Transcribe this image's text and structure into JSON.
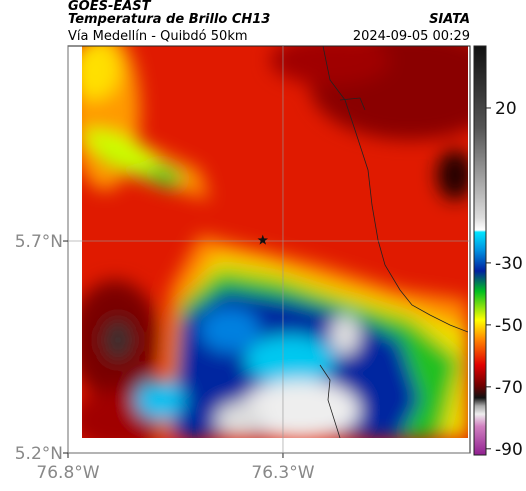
{
  "header": {
    "source": "GOES-EAST",
    "title": "Temperatura de Brillo CH13",
    "org": "SIATA",
    "subtitle": "Vía Medellín - Quibdó 50km",
    "timestamp": "2024-09-05 00:29"
  },
  "map": {
    "xlim": [
      -76.8,
      -75.865
    ],
    "ylim": [
      5.2,
      6.16
    ],
    "xticks": [
      {
        "value": -76.8,
        "label": "76.8°W"
      },
      {
        "value": -76.3,
        "label": "76.3°W"
      }
    ],
    "yticks": [
      {
        "value": 5.2,
        "label": "5.2°N"
      },
      {
        "value": 5.7,
        "label": "5.7°N"
      }
    ],
    "grid": true,
    "marker": {
      "lon": -76.347,
      "lat": 5.702
    }
  },
  "colorbar": {
    "lim": [
      -92,
      40
    ],
    "ticks": [
      20,
      -30,
      -50,
      -70,
      -90
    ]
  }
}
